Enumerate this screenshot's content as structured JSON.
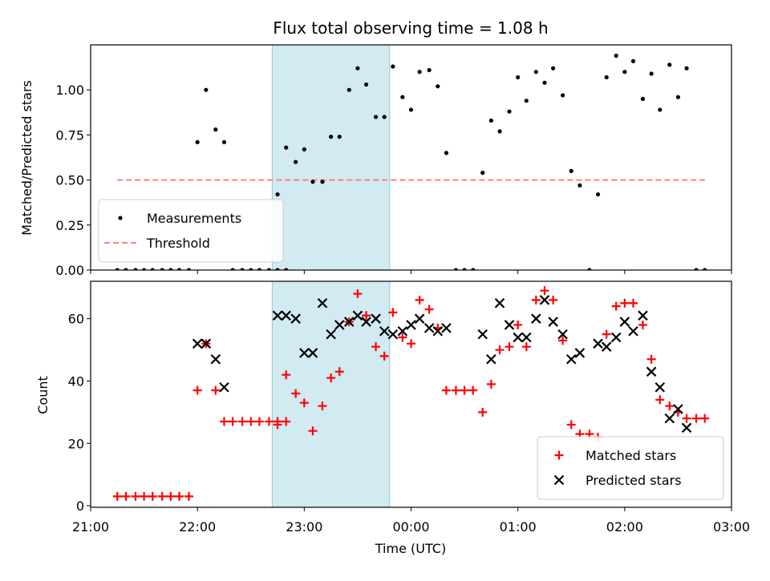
{
  "chart_data": {
    "type": "scatter",
    "title": "Flux total observing time = 1.08 h",
    "xlabel": "Time (UTC)",
    "x_ticks": [
      "21:00",
      "22:00",
      "23:00",
      "00:00",
      "01:00",
      "02:00",
      "03:00"
    ],
    "x_range_hours": [
      -3.0,
      3.0
    ],
    "highlight_span_hours": [
      -1.3,
      -0.2
    ],
    "highlight_color": "#add8e6",
    "panels": [
      {
        "ylabel": "Matched/Predicted stars",
        "ylim": [
          0,
          1.25
        ],
        "y_ticks": [
          "0.00",
          "0.25",
          "0.50",
          "0.75",
          "1.00"
        ],
        "y_tick_values": [
          0,
          0.25,
          0.5,
          0.75,
          1.0
        ],
        "threshold": {
          "name": "Threshold",
          "value": 0.5,
          "x_range": [
            -2.75,
            2.75
          ],
          "color": "#ff7f7f"
        },
        "series": [
          {
            "name": "Measurements",
            "color": "#000000",
            "marker": "dot",
            "points": [
              [
                -2.75,
                0
              ],
              [
                -2.67,
                0
              ],
              [
                -2.58,
                0
              ],
              [
                -2.5,
                0
              ],
              [
                -2.42,
                0
              ],
              [
                -2.33,
                0
              ],
              [
                -2.25,
                0
              ],
              [
                -2.17,
                0
              ],
              [
                -2.08,
                0
              ],
              [
                -2.0,
                0.71
              ],
              [
                -1.92,
                1.0
              ],
              [
                -1.83,
                0.78
              ],
              [
                -1.75,
                0.71
              ],
              [
                -1.67,
                0
              ],
              [
                -1.58,
                0
              ],
              [
                -1.5,
                0
              ],
              [
                -1.42,
                0
              ],
              [
                -1.33,
                0
              ],
              [
                -1.25,
                0
              ],
              [
                -1.17,
                0
              ],
              [
                -1.25,
                0.42
              ],
              [
                -1.17,
                0.68
              ],
              [
                -1.08,
                0.6
              ],
              [
                -1.0,
                0.67
              ],
              [
                -0.92,
                0.49
              ],
              [
                -0.83,
                0.49
              ],
              [
                -0.75,
                0.74
              ],
              [
                -0.67,
                0.74
              ],
              [
                -0.58,
                1.0
              ],
              [
                -0.5,
                1.12
              ],
              [
                -0.42,
                1.03
              ],
              [
                -0.33,
                0.85
              ],
              [
                -0.25,
                0.85
              ],
              [
                -0.17,
                1.13
              ],
              [
                -0.08,
                0.96
              ],
              [
                0.0,
                0.89
              ],
              [
                0.08,
                1.1
              ],
              [
                0.17,
                1.11
              ],
              [
                0.25,
                1.02
              ],
              [
                0.33,
                0.65
              ],
              [
                0.42,
                0
              ],
              [
                0.5,
                0
              ],
              [
                0.58,
                0
              ],
              [
                0.67,
                0.54
              ],
              [
                0.75,
                0.83
              ],
              [
                0.83,
                0.77
              ],
              [
                0.92,
                0.88
              ],
              [
                1.0,
                1.07
              ],
              [
                1.08,
                0.94
              ],
              [
                1.17,
                1.1
              ],
              [
                1.25,
                1.04
              ],
              [
                1.33,
                1.12
              ],
              [
                1.42,
                0.97
              ],
              [
                1.5,
                0.55
              ],
              [
                1.58,
                0.47
              ],
              [
                1.67,
                0
              ],
              [
                1.75,
                0.42
              ],
              [
                1.83,
                1.07
              ],
              [
                1.92,
                1.19
              ],
              [
                2.0,
                1.1
              ],
              [
                2.08,
                1.16
              ],
              [
                2.17,
                0.95
              ],
              [
                2.25,
                1.09
              ],
              [
                2.33,
                0.89
              ],
              [
                2.42,
                1.14
              ],
              [
                2.5,
                0.96
              ],
              [
                2.58,
                1.12
              ],
              [
                2.67,
                0
              ],
              [
                2.75,
                0
              ]
            ]
          }
        ],
        "legend": "lower-left"
      },
      {
        "ylabel": "Count",
        "ylim": [
          -0.5,
          72
        ],
        "y_ticks": [
          "0",
          "20",
          "40",
          "60"
        ],
        "y_tick_values": [
          0,
          20,
          40,
          60
        ],
        "series": [
          {
            "name": "Matched stars",
            "color": "#ff0000",
            "marker": "plus",
            "points": [
              [
                -2.75,
                3
              ],
              [
                -2.67,
                3
              ],
              [
                -2.58,
                3
              ],
              [
                -2.5,
                3
              ],
              [
                -2.42,
                3
              ],
              [
                -2.33,
                3
              ],
              [
                -2.25,
                3
              ],
              [
                -2.17,
                3
              ],
              [
                -2.08,
                3
              ],
              [
                -2.0,
                37
              ],
              [
                -1.92,
                52
              ],
              [
                -1.83,
                37
              ],
              [
                -1.75,
                27
              ],
              [
                -1.67,
                27
              ],
              [
                -1.58,
                27
              ],
              [
                -1.5,
                27
              ],
              [
                -1.42,
                27
              ],
              [
                -1.33,
                27
              ],
              [
                -1.25,
                27
              ],
              [
                -1.17,
                27
              ],
              [
                -1.25,
                26
              ],
              [
                -1.17,
                42
              ],
              [
                -1.08,
                36
              ],
              [
                -1.0,
                33
              ],
              [
                -0.92,
                24
              ],
              [
                -0.83,
                32
              ],
              [
                -0.75,
                41
              ],
              [
                -0.67,
                43
              ],
              [
                -0.58,
                59
              ],
              [
                -0.5,
                68
              ],
              [
                -0.42,
                61
              ],
              [
                -0.33,
                51
              ],
              [
                -0.25,
                48
              ],
              [
                -0.17,
                62
              ],
              [
                -0.08,
                54
              ],
              [
                0.0,
                52
              ],
              [
                0.08,
                66
              ],
              [
                0.17,
                63
              ],
              [
                0.25,
                57
              ],
              [
                0.33,
                37
              ],
              [
                0.42,
                37
              ],
              [
                0.5,
                37
              ],
              [
                0.58,
                37
              ],
              [
                0.67,
                30
              ],
              [
                0.75,
                39
              ],
              [
                0.83,
                50
              ],
              [
                0.92,
                51
              ],
              [
                1.0,
                58
              ],
              [
                1.08,
                51
              ],
              [
                1.17,
                66
              ],
              [
                1.25,
                69
              ],
              [
                1.33,
                66
              ],
              [
                1.42,
                53
              ],
              [
                1.5,
                26
              ],
              [
                1.58,
                23
              ],
              [
                1.67,
                23
              ],
              [
                1.75,
                22
              ],
              [
                1.83,
                55
              ],
              [
                1.92,
                64
              ],
              [
                2.0,
                65
              ],
              [
                2.08,
                65
              ],
              [
                2.17,
                58
              ],
              [
                2.25,
                47
              ],
              [
                2.33,
                34
              ],
              [
                2.42,
                32
              ],
              [
                2.5,
                30
              ],
              [
                2.58,
                28
              ],
              [
                2.67,
                28
              ],
              [
                2.75,
                28
              ]
            ]
          },
          {
            "name": "Predicted stars",
            "color": "#000000",
            "marker": "x",
            "points": [
              [
                -2.0,
                52
              ],
              [
                -1.92,
                52
              ],
              [
                -1.83,
                47
              ],
              [
                -1.75,
                38
              ],
              [
                -1.25,
                61
              ],
              [
                -1.17,
                61
              ],
              [
                -1.08,
                60
              ],
              [
                -1.0,
                49
              ],
              [
                -0.92,
                49
              ],
              [
                -0.83,
                65
              ],
              [
                -0.75,
                55
              ],
              [
                -0.67,
                58
              ],
              [
                -0.58,
                59
              ],
              [
                -0.5,
                61
              ],
              [
                -0.42,
                59
              ],
              [
                -0.33,
                60
              ],
              [
                -0.25,
                56
              ],
              [
                -0.17,
                55
              ],
              [
                -0.08,
                56
              ],
              [
                0.0,
                58
              ],
              [
                0.08,
                60
              ],
              [
                0.17,
                57
              ],
              [
                0.25,
                56
              ],
              [
                0.33,
                57
              ],
              [
                0.67,
                55
              ],
              [
                0.75,
                47
              ],
              [
                0.83,
                65
              ],
              [
                0.92,
                58
              ],
              [
                1.0,
                54
              ],
              [
                1.08,
                54
              ],
              [
                1.17,
                60
              ],
              [
                1.25,
                66
              ],
              [
                1.33,
                59
              ],
              [
                1.42,
                55
              ],
              [
                1.5,
                47
              ],
              [
                1.58,
                49
              ],
              [
                1.75,
                52
              ],
              [
                1.83,
                51
              ],
              [
                1.92,
                54
              ],
              [
                2.0,
                59
              ],
              [
                2.08,
                56
              ],
              [
                2.17,
                61
              ],
              [
                2.25,
                43
              ],
              [
                2.33,
                38
              ],
              [
                2.42,
                28
              ],
              [
                2.5,
                31
              ],
              [
                2.58,
                25
              ]
            ]
          }
        ],
        "legend": "lower-right"
      }
    ]
  }
}
